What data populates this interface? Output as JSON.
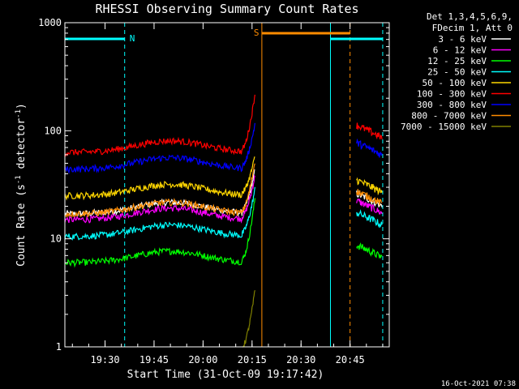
{
  "chart_data": {
    "type": "line",
    "title": "RHESSI Observing Summary Count Rates",
    "xlabel": "Start Time (31-Oct-09 19:17:42)",
    "ylabel": "Count Rate (s⁻¹ detector⁻¹)",
    "ylabel_parts": {
      "main": "Count Rate (s",
      "sup1": "-1",
      "mid": " detector",
      "sup2": "-1",
      "end": ")"
    },
    "yscale": "log",
    "ylim": [
      1,
      1000
    ],
    "xlim": [
      "19:17:42",
      "20:57:00"
    ],
    "xticks": [
      "19:30",
      "19:45",
      "20:00",
      "20:15",
      "20:30",
      "20:45"
    ],
    "yticks": [
      "1",
      "10",
      "100",
      "1000"
    ],
    "footer_stamp": "16-Oct-2021 07:38",
    "legend": {
      "header1": "Det 1,3,4,5,6,9,",
      "header2": "FDecim 1, Att 0",
      "position": "right"
    },
    "series": [
      {
        "name": "3 - 6 keV",
        "color": "#ffffff",
        "base": 17,
        "peak": 45,
        "post": 21
      },
      {
        "name": "6 - 12 keV",
        "color": "#ff00ff",
        "base": 15,
        "peak": 40,
        "post": 18
      },
      {
        "name": "12 - 25 keV",
        "color": "#00ff00",
        "base": 6,
        "peak": 25,
        "post": 7
      },
      {
        "name": "25 - 50 keV",
        "color": "#00ffff",
        "base": 10.5,
        "peak": 30,
        "post": 14
      },
      {
        "name": "50 - 100 keV",
        "color": "#ffd700",
        "base": 25,
        "peak": 60,
        "post": 28
      },
      {
        "name": "100 - 300 keV",
        "color": "#ff0000",
        "base": 63,
        "peak": 230,
        "post": 90
      },
      {
        "name": "300 - 800 keV",
        "color": "#0000ff",
        "base": 44,
        "peak": 120,
        "post": 62
      },
      {
        "name": "800 - 7000 keV",
        "color": "#ff8c00",
        "base": 17,
        "peak": 55,
        "post": 22
      },
      {
        "name": "7000 - 15000 keV",
        "color": "#808000",
        "base": 0,
        "peak": 3.5,
        "post": 0
      }
    ],
    "flags": [
      {
        "label": "N",
        "color": "#00ffff",
        "start": "19:17:42",
        "end": "19:36:00"
      },
      {
        "label": "S",
        "color": "#ff8c00",
        "start": "20:18:00",
        "end": "20:45:00"
      },
      {
        "label": "",
        "color": "#00ffff",
        "start": "20:39:00",
        "end": "20:55:00"
      }
    ],
    "grid": false
  }
}
